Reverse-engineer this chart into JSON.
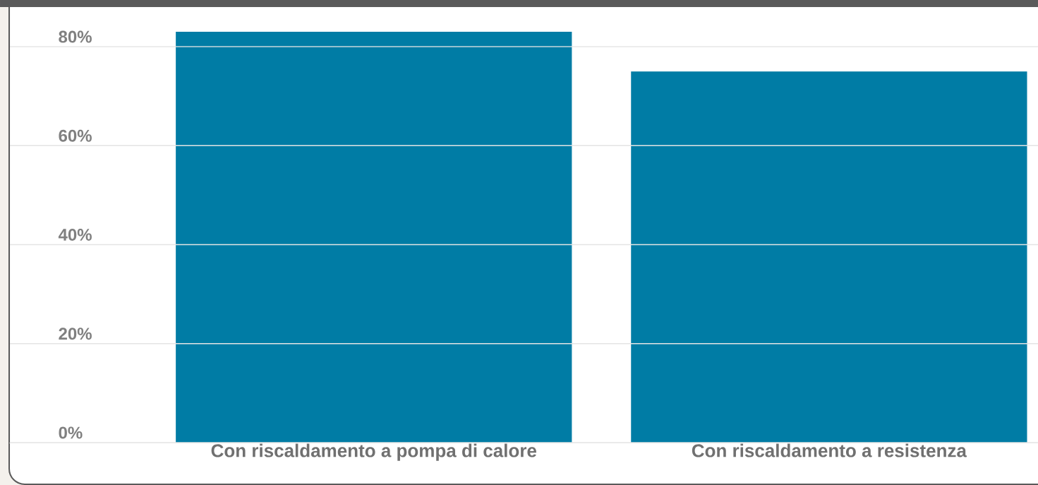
{
  "chart_data": {
    "type": "bar",
    "categories": [
      "Con riscaldamento a pompa di calore",
      "Con riscaldamento a resistenza"
    ],
    "values": [
      83,
      75
    ],
    "color": "#007ca5",
    "ylim": [
      0,
      88
    ],
    "yticks": [
      {
        "value": 0,
        "label": "0%"
      },
      {
        "value": 20,
        "label": "20%"
      },
      {
        "value": 40,
        "label": "40%"
      },
      {
        "value": 60,
        "label": "60%"
      },
      {
        "value": 80,
        "label": "80%"
      }
    ],
    "grid": "y"
  }
}
